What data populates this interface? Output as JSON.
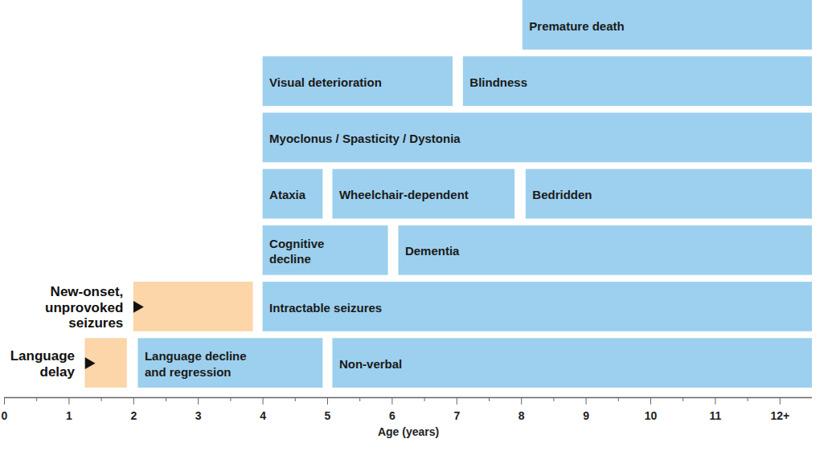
{
  "chart_data": {
    "type": "bar",
    "orientation": "horizontal",
    "xlabel": "Age (years)",
    "xlim": [
      0,
      12.5
    ],
    "xticks": [
      0,
      1,
      2,
      3,
      4,
      5,
      6,
      7,
      8,
      9,
      10,
      11,
      {
        "value": 12,
        "label": "12+"
      }
    ],
    "tick_labels": "x",
    "bars": [
      {
        "row": 0,
        "start": 1.25,
        "end": 1.9,
        "color": "#fcd5a8"
      },
      {
        "row": 0,
        "start": 2.07,
        "end": 4.93,
        "label": "Language decline\nand regression",
        "color": "#9dd0ee"
      },
      {
        "row": 0,
        "start": 5.08,
        "end": 12.5,
        "label": "Non-verbal",
        "color": "#9dd0ee"
      },
      {
        "row": 1,
        "start": 2.0,
        "end": 3.85,
        "color": "#fcd5a8"
      },
      {
        "row": 1,
        "start": 4.0,
        "end": 12.5,
        "label": "Intractable seizures",
        "color": "#9dd0ee"
      },
      {
        "row": 2,
        "start": 4.0,
        "end": 5.94,
        "label": "Cognitive\ndecline",
        "color": "#9dd0ee"
      },
      {
        "row": 2,
        "start": 6.1,
        "end": 12.5,
        "label": "Dementia",
        "color": "#9dd0ee"
      },
      {
        "row": 3,
        "start": 4.0,
        "end": 4.93,
        "label": "Ataxia",
        "color": "#9dd0ee"
      },
      {
        "row": 3,
        "start": 5.08,
        "end": 7.9,
        "label": "Wheelchair-dependent",
        "color": "#9dd0ee"
      },
      {
        "row": 3,
        "start": 8.07,
        "end": 12.5,
        "label": "Bedridden",
        "color": "#9dd0ee"
      },
      {
        "row": 4,
        "start": 4.0,
        "end": 12.5,
        "label": "Myoclonus / Spasticity / Dystonia",
        "color": "#9dd0ee"
      },
      {
        "row": 5,
        "start": 4.0,
        "end": 6.94,
        "label": "Visual deterioration",
        "color": "#9dd0ee"
      },
      {
        "row": 5,
        "start": 7.1,
        "end": 12.5,
        "label": "Blindness",
        "color": "#9dd0ee"
      },
      {
        "row": 6,
        "start": 8.02,
        "end": 12.5,
        "label": "Premature death",
        "color": "#9dd0ee"
      }
    ],
    "annotations": [
      {
        "text": "Language\ndelay",
        "x": 1.25,
        "row": 0
      },
      {
        "text": "New-onset,\nunprovoked\nseizures",
        "x": 2.0,
        "row": 1
      }
    ]
  }
}
